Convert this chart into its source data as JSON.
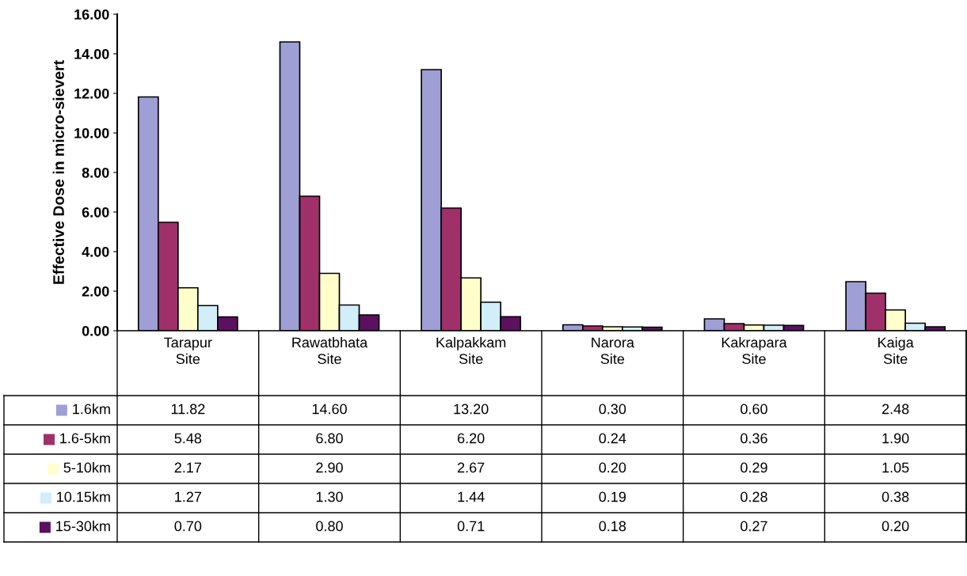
{
  "chart_data": {
    "type": "bar",
    "ylabel": "Effective Dose in micro-sievert",
    "categories": [
      "Tarapur\nSite",
      "Rawatbhata\nSite",
      "Kalpakkam\nSite",
      "Narora\nSite",
      "Kakrapara\nSite",
      "Kaiga\nSite"
    ],
    "series": [
      {
        "name": "1.6km",
        "color": "#9f9fd6",
        "values": [
          11.82,
          14.6,
          13.2,
          0.3,
          0.6,
          2.48
        ],
        "value_labels": [
          "11.82",
          "14.60",
          "13.20",
          "0.30",
          "0.60",
          "2.48"
        ]
      },
      {
        "name": "1.6-5km",
        "color": "#a0306a",
        "values": [
          5.48,
          6.8,
          6.2,
          0.24,
          0.36,
          1.9
        ],
        "value_labels": [
          "5.48",
          "6.80",
          "6.20",
          "0.24",
          "0.36",
          "1.90"
        ]
      },
      {
        "name": "5-10km",
        "color": "#ffffcc",
        "values": [
          2.17,
          2.9,
          2.67,
          0.2,
          0.29,
          1.05
        ],
        "value_labels": [
          "2.17",
          "2.90",
          "2.67",
          "0.20",
          "0.29",
          "1.05"
        ]
      },
      {
        "name": "10.15km",
        "color": "#d2eef8",
        "values": [
          1.27,
          1.3,
          1.44,
          0.19,
          0.28,
          0.38
        ],
        "value_labels": [
          "1.27",
          "1.30",
          "1.44",
          "0.19",
          "0.28",
          "0.38"
        ]
      },
      {
        "name": "15-30km",
        "color": "#5c1060",
        "values": [
          0.7,
          0.8,
          0.71,
          0.18,
          0.27,
          0.2
        ],
        "value_labels": [
          "0.70",
          "0.80",
          "0.71",
          "0.18",
          "0.27",
          "0.20"
        ]
      }
    ],
    "ylim": [
      0,
      16
    ],
    "yticks": [
      {
        "value": 0,
        "label": "0.00"
      },
      {
        "value": 2,
        "label": "2.00"
      },
      {
        "value": 4,
        "label": "4.00"
      },
      {
        "value": 6,
        "label": "6.00"
      },
      {
        "value": 8,
        "label": "8.00"
      },
      {
        "value": 10,
        "label": "10.00"
      },
      {
        "value": 12,
        "label": "12.00"
      },
      {
        "value": 14,
        "label": "14.00"
      },
      {
        "value": 16,
        "label": "16.00"
      }
    ],
    "grid": false,
    "legend": "bottom"
  }
}
